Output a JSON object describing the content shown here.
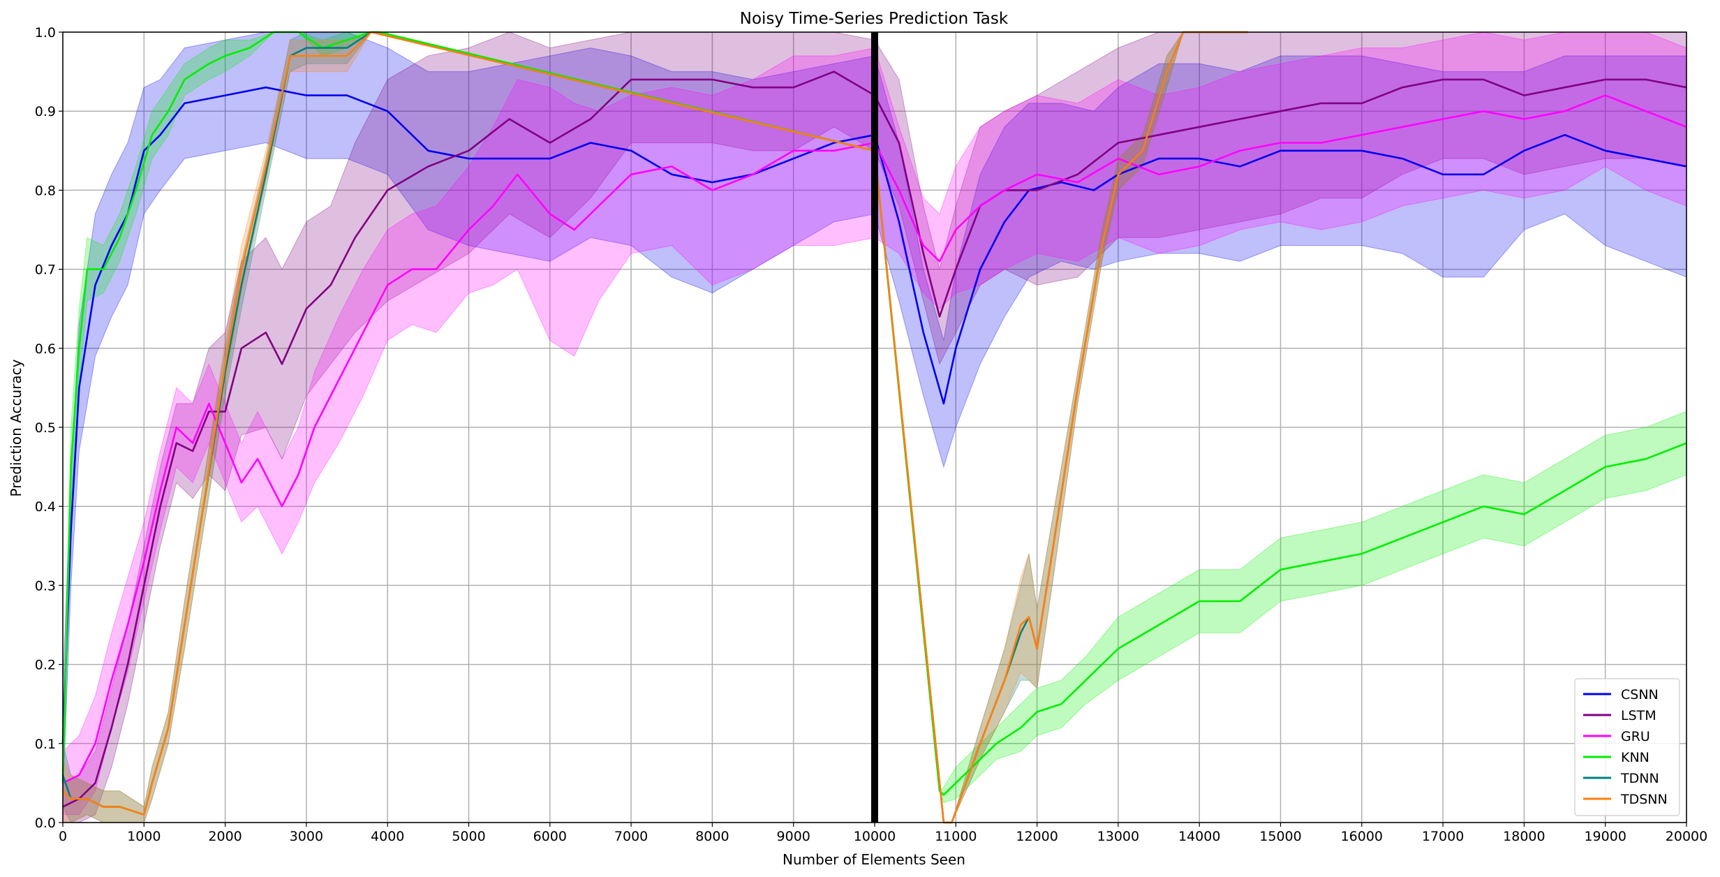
{
  "chart_data": {
    "type": "line",
    "title": "Noisy Time-Series Prediction Task",
    "xlabel": "Number of Elements Seen",
    "ylabel": "Prediction Accuracy",
    "xlim": [
      0,
      20000
    ],
    "ylim": [
      0,
      1.0
    ],
    "xticks": [
      "0",
      "1000",
      "2000",
      "3000",
      "4000",
      "5000",
      "6000",
      "7000",
      "8000",
      "9000",
      "10000",
      "11000",
      "12000",
      "13000",
      "14000",
      "15000",
      "16000",
      "17000",
      "18000",
      "19000",
      "20000"
    ],
    "yticks": [
      "0.0",
      "0.1",
      "0.2",
      "0.3",
      "0.4",
      "0.5",
      "0.6",
      "0.7",
      "0.8",
      "0.9",
      "1.0"
    ],
    "grid": true,
    "legend_position": "bottom-right",
    "vertical_marker_x": 10000,
    "series": [
      {
        "name": "CSNN",
        "color": "#0000ee",
        "x": [
          0,
          100,
          200,
          400,
          600,
          800,
          1000,
          1200,
          1500,
          2000,
          2500,
          3000,
          3500,
          4000,
          4500,
          5000,
          5500,
          6000,
          6500,
          7000,
          7500,
          8000,
          8500,
          9000,
          9500,
          10000,
          10300,
          10600,
          10850,
          11000,
          11300,
          11600,
          11900,
          12300,
          12700,
          13000,
          13500,
          14000,
          14500,
          15000,
          15500,
          16000,
          16500,
          17000,
          17500,
          18000,
          18500,
          19000,
          19500,
          20000
        ],
        "y": [
          0.1,
          0.37,
          0.55,
          0.68,
          0.73,
          0.77,
          0.85,
          0.87,
          0.91,
          0.92,
          0.93,
          0.92,
          0.92,
          0.9,
          0.85,
          0.84,
          0.84,
          0.84,
          0.86,
          0.85,
          0.82,
          0.81,
          0.82,
          0.84,
          0.86,
          0.87,
          0.76,
          0.62,
          0.53,
          0.6,
          0.7,
          0.76,
          0.8,
          0.81,
          0.8,
          0.82,
          0.84,
          0.84,
          0.83,
          0.85,
          0.85,
          0.85,
          0.84,
          0.82,
          0.82,
          0.85,
          0.87,
          0.85,
          0.84,
          0.83
        ],
        "band": [
          0.07,
          0.07,
          0.08,
          0.09,
          0.09,
          0.09,
          0.08,
          0.07,
          0.07,
          0.07,
          0.07,
          0.08,
          0.08,
          0.08,
          0.1,
          0.11,
          0.12,
          0.13,
          0.12,
          0.12,
          0.13,
          0.14,
          0.12,
          0.11,
          0.1,
          0.1,
          0.1,
          0.08,
          0.08,
          0.1,
          0.12,
          0.12,
          0.11,
          0.1,
          0.1,
          0.11,
          0.12,
          0.12,
          0.12,
          0.12,
          0.12,
          0.12,
          0.12,
          0.13,
          0.13,
          0.1,
          0.1,
          0.12,
          0.13,
          0.14
        ]
      },
      {
        "name": "LSTM",
        "color": "#800080",
        "x": [
          0,
          200,
          400,
          600,
          800,
          1000,
          1200,
          1400,
          1600,
          1800,
          2000,
          2200,
          2500,
          2700,
          3000,
          3300,
          3600,
          4000,
          4500,
          5000,
          5500,
          6000,
          6500,
          7000,
          7500,
          8000,
          8500,
          9000,
          9500,
          10000,
          10300,
          10600,
          10800,
          11000,
          11300,
          11600,
          12000,
          12500,
          13000,
          13500,
          14000,
          14500,
          15000,
          15500,
          16000,
          16500,
          17000,
          17500,
          18000,
          18500,
          19000,
          19500,
          20000
        ],
        "y": [
          0.02,
          0.03,
          0.05,
          0.12,
          0.2,
          0.3,
          0.4,
          0.48,
          0.47,
          0.52,
          0.52,
          0.6,
          0.62,
          0.58,
          0.65,
          0.68,
          0.74,
          0.8,
          0.83,
          0.85,
          0.89,
          0.86,
          0.89,
          0.94,
          0.94,
          0.94,
          0.93,
          0.93,
          0.95,
          0.92,
          0.86,
          0.72,
          0.64,
          0.7,
          0.78,
          0.8,
          0.8,
          0.82,
          0.86,
          0.87,
          0.88,
          0.89,
          0.9,
          0.91,
          0.91,
          0.93,
          0.94,
          0.94,
          0.92,
          0.93,
          0.94,
          0.94,
          0.93
        ],
        "band": [
          0.03,
          0.03,
          0.04,
          0.05,
          0.05,
          0.05,
          0.05,
          0.05,
          0.06,
          0.08,
          0.1,
          0.11,
          0.12,
          0.12,
          0.11,
          0.1,
          0.12,
          0.14,
          0.14,
          0.13,
          0.12,
          0.12,
          0.1,
          0.08,
          0.08,
          0.08,
          0.08,
          0.08,
          0.07,
          0.07,
          0.08,
          0.06,
          0.06,
          0.08,
          0.1,
          0.1,
          0.12,
          0.13,
          0.12,
          0.13,
          0.13,
          0.13,
          0.13,
          0.12,
          0.12,
          0.11,
          0.1,
          0.1,
          0.1,
          0.1,
          0.1,
          0.1,
          0.1
        ]
      },
      {
        "name": "GRU",
        "color": "#ff00ff",
        "x": [
          0,
          200,
          400,
          600,
          800,
          1000,
          1200,
          1400,
          1600,
          1800,
          2000,
          2200,
          2400,
          2700,
          2900,
          3100,
          3400,
          3700,
          4000,
          4300,
          4600,
          5000,
          5300,
          5600,
          6000,
          6300,
          6600,
          7000,
          7500,
          8000,
          8500,
          9000,
          9500,
          10000,
          10300,
          10600,
          10800,
          11000,
          11300,
          11600,
          12000,
          12500,
          13000,
          13500,
          14000,
          14500,
          15000,
          15500,
          16000,
          16500,
          17000,
          17500,
          18000,
          18500,
          19000,
          19500,
          20000
        ],
        "y": [
          0.05,
          0.06,
          0.1,
          0.18,
          0.25,
          0.33,
          0.42,
          0.5,
          0.48,
          0.53,
          0.48,
          0.43,
          0.46,
          0.4,
          0.44,
          0.5,
          0.56,
          0.62,
          0.68,
          0.7,
          0.7,
          0.75,
          0.78,
          0.82,
          0.77,
          0.75,
          0.78,
          0.82,
          0.83,
          0.8,
          0.82,
          0.85,
          0.85,
          0.86,
          0.8,
          0.73,
          0.71,
          0.75,
          0.78,
          0.8,
          0.82,
          0.81,
          0.84,
          0.82,
          0.83,
          0.85,
          0.86,
          0.86,
          0.87,
          0.88,
          0.89,
          0.9,
          0.89,
          0.9,
          0.92,
          0.9,
          0.88
        ],
        "band": [
          0.04,
          0.05,
          0.06,
          0.06,
          0.06,
          0.05,
          0.05,
          0.05,
          0.05,
          0.05,
          0.05,
          0.05,
          0.06,
          0.06,
          0.06,
          0.07,
          0.08,
          0.08,
          0.07,
          0.07,
          0.08,
          0.08,
          0.1,
          0.12,
          0.16,
          0.16,
          0.12,
          0.1,
          0.1,
          0.12,
          0.12,
          0.12,
          0.12,
          0.12,
          0.08,
          0.06,
          0.06,
          0.08,
          0.1,
          0.1,
          0.1,
          0.1,
          0.1,
          0.1,
          0.1,
          0.1,
          0.1,
          0.11,
          0.11,
          0.1,
          0.1,
          0.1,
          0.1,
          0.1,
          0.09,
          0.1,
          0.1
        ]
      },
      {
        "name": "KNN",
        "color": "#00ee00",
        "x": [
          0,
          100,
          200,
          300,
          500,
          700,
          900,
          1100,
          1300,
          1500,
          1800,
          2000,
          2300,
          2600,
          2900,
          3200,
          3500,
          3800,
          3900,
          10000,
          10800,
          10850,
          11000,
          11200,
          11500,
          11800,
          12000,
          12300,
          12600,
          13000,
          13500,
          14000,
          14500,
          15000,
          15500,
          16000,
          16500,
          17000,
          17500,
          18000,
          18500,
          19000,
          19500,
          20000
        ],
        "y": [
          0.05,
          0.45,
          0.6,
          0.7,
          0.7,
          0.74,
          0.8,
          0.87,
          0.9,
          0.94,
          0.96,
          0.97,
          0.98,
          1.0,
          1.0,
          0.98,
          0.99,
          1.0,
          1.0,
          0.85,
          0.04,
          0.035,
          0.05,
          0.07,
          0.1,
          0.12,
          0.14,
          0.15,
          0.18,
          0.22,
          0.25,
          0.28,
          0.28,
          0.32,
          0.33,
          0.34,
          0.36,
          0.38,
          0.4,
          0.39,
          0.42,
          0.45,
          0.46,
          0.48
        ],
        "band": [
          0.03,
          0.05,
          0.05,
          0.04,
          0.03,
          0.03,
          0.03,
          0.03,
          0.03,
          0.02,
          0.02,
          0.02,
          0.01,
          0.0,
          0.0,
          0.01,
          0.01,
          0.0,
          0.0,
          0.0,
          0.0,
          0.01,
          0.02,
          0.02,
          0.02,
          0.03,
          0.03,
          0.03,
          0.03,
          0.04,
          0.04,
          0.04,
          0.04,
          0.04,
          0.04,
          0.04,
          0.04,
          0.04,
          0.04,
          0.04,
          0.04,
          0.04,
          0.04,
          0.04
        ]
      },
      {
        "name": "TDNN",
        "color": "#008080",
        "x": [
          0,
          100,
          300,
          500,
          700,
          1000,
          1100,
          1300,
          1500,
          1700,
          2000,
          2200,
          2500,
          2800,
          3000,
          3500,
          3800,
          10000,
          10850,
          10950,
          11300,
          11600,
          11800,
          11900,
          12000,
          12200,
          12500,
          12800,
          13000,
          13300,
          13600,
          13800,
          14000,
          14600
        ],
        "y": [
          0.06,
          0.03,
          0.03,
          0.02,
          0.02,
          0.01,
          0.05,
          0.12,
          0.25,
          0.38,
          0.57,
          0.68,
          0.82,
          0.97,
          0.98,
          0.98,
          1.0,
          0.85,
          0.0,
          0.0,
          0.1,
          0.18,
          0.24,
          0.26,
          0.22,
          0.35,
          0.55,
          0.73,
          0.82,
          0.85,
          0.95,
          1.0,
          1.0,
          1.0
        ],
        "band": [
          0.04,
          0.03,
          0.02,
          0.02,
          0.02,
          0.01,
          0.02,
          0.02,
          0.03,
          0.03,
          0.03,
          0.03,
          0.02,
          0.02,
          0.02,
          0.02,
          0.0,
          0.0,
          0.0,
          0.0,
          0.02,
          0.04,
          0.06,
          0.08,
          0.05,
          0.04,
          0.02,
          0.02,
          0.02,
          0.02,
          0.02,
          0.0,
          0.0,
          0.0
        ]
      },
      {
        "name": "TDSNN",
        "color": "#ff7f0e",
        "x": [
          0,
          100,
          300,
          500,
          700,
          1000,
          1100,
          1300,
          1500,
          1700,
          2000,
          2200,
          2500,
          2800,
          3000,
          3500,
          3800,
          10000,
          10850,
          10950,
          11300,
          11600,
          11800,
          11900,
          12000,
          12200,
          12500,
          12800,
          13000,
          13300,
          13600,
          13800,
          14000,
          14600
        ],
        "y": [
          0.04,
          0.03,
          0.03,
          0.02,
          0.02,
          0.01,
          0.05,
          0.12,
          0.25,
          0.38,
          0.58,
          0.7,
          0.83,
          0.97,
          0.97,
          0.97,
          1.0,
          0.85,
          0.0,
          0.0,
          0.1,
          0.18,
          0.25,
          0.26,
          0.22,
          0.35,
          0.55,
          0.73,
          0.82,
          0.85,
          0.95,
          1.0,
          1.0,
          1.0
        ],
        "band": [
          0.04,
          0.03,
          0.02,
          0.02,
          0.02,
          0.01,
          0.02,
          0.02,
          0.03,
          0.03,
          0.03,
          0.03,
          0.02,
          0.02,
          0.02,
          0.02,
          0.0,
          0.0,
          0.0,
          0.0,
          0.02,
          0.04,
          0.06,
          0.08,
          0.05,
          0.04,
          0.02,
          0.02,
          0.02,
          0.02,
          0.02,
          0.0,
          0.0,
          0.0
        ]
      }
    ]
  }
}
